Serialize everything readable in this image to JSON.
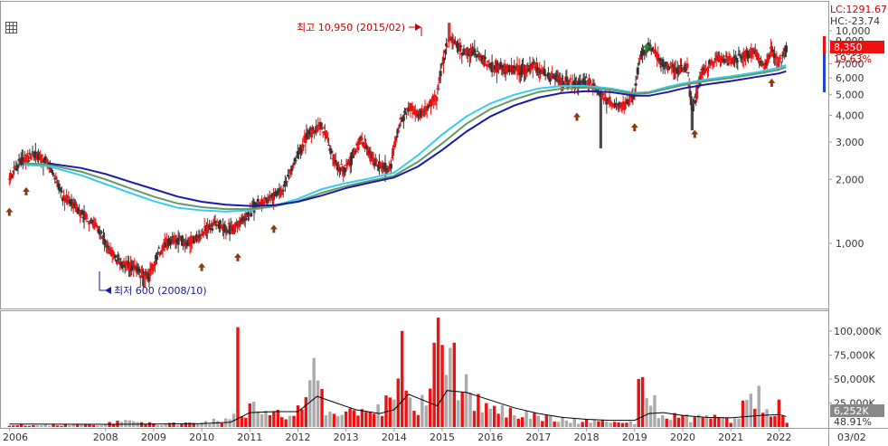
{
  "header": {
    "lc_label": "LC:1291.67",
    "hc_label": "HC:-23.74",
    "price_badge": "8,350",
    "change_label": "19.63%"
  },
  "volume_header": {
    "volume_badge": "6,252K",
    "volume_pct": "48.91%"
  },
  "annotations": {
    "high_label": "최고 10,950 (2015/02)",
    "low_label": "최저 600 (2008/10)"
  },
  "colors": {
    "up": "#ee1111",
    "down": "#333333",
    "ma_short": "#33ccee",
    "ma_mid": "#669966",
    "ma_long": "#1a1aaa",
    "vol_up": "#ee1111",
    "vol_down": "#aaaaaa",
    "vol_ma": "#000000",
    "arrow_brown": "#8b3a10",
    "arrow_green": "#2a8a2a",
    "badge_red": "#ee1111",
    "badge_gray": "#888888",
    "grid": "#dddddd"
  },
  "icons": {
    "chart_menu": "grid-menu-icon"
  },
  "chart_data": [
    {
      "type": "candlestick",
      "scale": "log",
      "ylim": [
        600,
        10950
      ],
      "y_ticks": [
        1000,
        2000,
        3000,
        4000,
        5000,
        6000,
        7000,
        8000,
        9000,
        10000
      ],
      "y_tick_labels": [
        "1,000",
        "2,000",
        "3,000",
        "4,000",
        "5,000",
        "6,000",
        "7,000",
        "8,000",
        "9,000",
        "10,000"
      ],
      "x_tick_labels": [
        "2006",
        "2008",
        "2009",
        "2010",
        "2011",
        "2012",
        "2013",
        "2014",
        "2015",
        "2016",
        "2017",
        "2018",
        "2019",
        "2020",
        "2021",
        "2022",
        "03/02"
      ],
      "x_tick_years": [
        2006,
        2008,
        2009,
        2010,
        2011,
        2012,
        2013,
        2014,
        2015,
        2016,
        2017,
        2018,
        2019,
        2020,
        2021,
        2022
      ],
      "x_range": [
        2005.9,
        2022.2
      ],
      "grid": false,
      "price_path": [
        [
          2006.0,
          2000
        ],
        [
          2006.2,
          2400
        ],
        [
          2006.5,
          2600
        ],
        [
          2006.8,
          2400
        ],
        [
          2007.1,
          1700
        ],
        [
          2007.5,
          1400
        ],
        [
          2007.8,
          1200
        ],
        [
          2008.0,
          1000
        ],
        [
          2008.3,
          800
        ],
        [
          2008.6,
          760
        ],
        [
          2008.9,
          700
        ],
        [
          2009.1,
          900
        ],
        [
          2009.4,
          1050
        ],
        [
          2009.7,
          1000
        ],
        [
          2010.0,
          1100
        ],
        [
          2010.3,
          1250
        ],
        [
          2010.6,
          1150
        ],
        [
          2010.9,
          1300
        ],
        [
          2011.1,
          1500
        ],
        [
          2011.4,
          1600
        ],
        [
          2011.7,
          1800
        ],
        [
          2012.0,
          2600
        ],
        [
          2012.2,
          3300
        ],
        [
          2012.5,
          3600
        ],
        [
          2012.8,
          2300
        ],
        [
          2013.0,
          2200
        ],
        [
          2013.3,
          3100
        ],
        [
          2013.6,
          2400
        ],
        [
          2013.9,
          2200
        ],
        [
          2014.1,
          3600
        ],
        [
          2014.3,
          4400
        ],
        [
          2014.5,
          4000
        ],
        [
          2014.7,
          4500
        ],
        [
          2014.9,
          5000
        ],
        [
          2015.0,
          7000
        ],
        [
          2015.15,
          9300
        ],
        [
          2015.4,
          8000
        ],
        [
          2015.7,
          7900
        ],
        [
          2016.0,
          6800
        ],
        [
          2016.3,
          6700
        ],
        [
          2016.6,
          6500
        ],
        [
          2016.9,
          6800
        ],
        [
          2017.2,
          6200
        ],
        [
          2017.5,
          5800
        ],
        [
          2017.8,
          5600
        ],
        [
          2018.0,
          5800
        ],
        [
          2018.2,
          5300
        ],
        [
          2018.4,
          4800
        ],
        [
          2018.6,
          4400
        ],
        [
          2018.8,
          4500
        ],
        [
          2019.0,
          5000
        ],
        [
          2019.1,
          7500
        ],
        [
          2019.3,
          8500
        ],
        [
          2019.6,
          7000
        ],
        [
          2019.9,
          6500
        ],
        [
          2020.1,
          6800
        ],
        [
          2020.2,
          4200
        ],
        [
          2020.4,
          6300
        ],
        [
          2020.7,
          7500
        ],
        [
          2021.0,
          7200
        ],
        [
          2021.3,
          7700
        ],
        [
          2021.5,
          7900
        ],
        [
          2021.7,
          6700
        ],
        [
          2021.85,
          8100
        ],
        [
          2022.0,
          7000
        ],
        [
          2022.15,
          8350
        ]
      ],
      "moving_averages": [
        {
          "points": [
            [
              2006.3,
              2340
            ],
            [
              2006.8,
              2310
            ],
            [
              2007.5,
              2090
            ],
            [
              2008.0,
              1900
            ],
            [
              2008.5,
              1730
            ],
            [
              2009.0,
              1580
            ],
            [
              2009.5,
              1470
            ],
            [
              2010.0,
              1430
            ],
            [
              2010.5,
              1410
            ],
            [
              2011.0,
              1430
            ],
            [
              2011.5,
              1500
            ],
            [
              2012.0,
              1620
            ],
            [
              2012.5,
              1800
            ],
            [
              2013.0,
              1920
            ],
            [
              2013.5,
              2020
            ],
            [
              2014.0,
              2150
            ],
            [
              2014.5,
              2600
            ],
            [
              2015.0,
              3250
            ],
            [
              2015.5,
              3950
            ],
            [
              2016.0,
              4550
            ],
            [
              2016.5,
              5000
            ],
            [
              2017.0,
              5350
            ],
            [
              2017.5,
              5500
            ],
            [
              2018.0,
              5500
            ],
            [
              2018.5,
              5350
            ],
            [
              2019.0,
              5100
            ],
            [
              2019.3,
              5150
            ],
            [
              2019.7,
              5450
            ],
            [
              2020.0,
              5650
            ],
            [
              2020.5,
              5900
            ],
            [
              2021.0,
              6100
            ],
            [
              2021.5,
              6350
            ],
            [
              2022.0,
              6700
            ],
            [
              2022.15,
              6900
            ]
          ]
        },
        {
          "points": [
            [
              2006.3,
              2380
            ],
            [
              2006.8,
              2350
            ],
            [
              2007.5,
              2170
            ],
            [
              2008.0,
              2000
            ],
            [
              2008.5,
              1820
            ],
            [
              2009.0,
              1660
            ],
            [
              2009.5,
              1540
            ],
            [
              2010.0,
              1480
            ],
            [
              2010.5,
              1450
            ],
            [
              2011.0,
              1450
            ],
            [
              2011.5,
              1490
            ],
            [
              2012.0,
              1580
            ],
            [
              2012.5,
              1730
            ],
            [
              2013.0,
              1860
            ],
            [
              2013.5,
              1970
            ],
            [
              2014.0,
              2080
            ],
            [
              2014.5,
              2420
            ],
            [
              2015.0,
              2950
            ],
            [
              2015.5,
              3650
            ],
            [
              2016.0,
              4280
            ],
            [
              2016.5,
              4750
            ],
            [
              2017.0,
              5150
            ],
            [
              2017.5,
              5350
            ],
            [
              2018.0,
              5400
            ],
            [
              2018.5,
              5280
            ],
            [
              2019.0,
              5050
            ],
            [
              2019.3,
              5100
            ],
            [
              2019.7,
              5350
            ],
            [
              2020.0,
              5550
            ],
            [
              2020.5,
              5800
            ],
            [
              2021.0,
              6000
            ],
            [
              2021.5,
              6250
            ],
            [
              2022.0,
              6550
            ],
            [
              2022.15,
              6750
            ]
          ]
        },
        {
          "points": [
            [
              2006.8,
              2380
            ],
            [
              2007.5,
              2260
            ],
            [
              2008.0,
              2120
            ],
            [
              2008.5,
              1950
            ],
            [
              2009.0,
              1800
            ],
            [
              2009.5,
              1660
            ],
            [
              2010.0,
              1570
            ],
            [
              2010.5,
              1520
            ],
            [
              2011.0,
              1500
            ],
            [
              2011.5,
              1510
            ],
            [
              2012.0,
              1570
            ],
            [
              2012.5,
              1680
            ],
            [
              2013.0,
              1820
            ],
            [
              2013.5,
              1930
            ],
            [
              2014.0,
              2040
            ],
            [
              2014.5,
              2300
            ],
            [
              2015.0,
              2750
            ],
            [
              2015.5,
              3350
            ],
            [
              2016.0,
              3950
            ],
            [
              2016.5,
              4450
            ],
            [
              2017.0,
              4850
            ],
            [
              2017.5,
              5100
            ],
            [
              2018.0,
              5200
            ],
            [
              2018.5,
              5150
            ],
            [
              2019.0,
              4950
            ],
            [
              2019.3,
              4950
            ],
            [
              2019.7,
              5150
            ],
            [
              2020.0,
              5350
            ],
            [
              2020.5,
              5600
            ],
            [
              2021.0,
              5800
            ],
            [
              2021.5,
              6050
            ],
            [
              2022.0,
              6300
            ],
            [
              2022.15,
              6450
            ]
          ]
        }
      ],
      "signal_arrows": [
        {
          "x": 2006.0,
          "dir": "up",
          "color": "brown"
        },
        {
          "x": 2006.35,
          "dir": "up",
          "color": "brown"
        },
        {
          "x": 2010.0,
          "dir": "up",
          "color": "brown"
        },
        {
          "x": 2010.75,
          "dir": "up",
          "color": "brown"
        },
        {
          "x": 2011.5,
          "dir": "up",
          "color": "brown"
        },
        {
          "x": 2017.8,
          "dir": "up",
          "color": "brown"
        },
        {
          "x": 2019.0,
          "dir": "up",
          "color": "brown"
        },
        {
          "x": 2019.25,
          "dir": "up",
          "color": "green"
        },
        {
          "x": 2020.25,
          "dir": "up",
          "color": "brown"
        },
        {
          "x": 2021.85,
          "dir": "up",
          "color": "brown"
        }
      ]
    },
    {
      "type": "bar",
      "series_kind": "volume",
      "ylim": [
        0,
        115000
      ],
      "y_ticks": [
        25000,
        50000,
        75000,
        100000
      ],
      "y_tick_labels": [
        "25,000K",
        "50,000K",
        "75,000K",
        "100,000K"
      ],
      "baseline": [
        [
          2006.0,
          2000
        ],
        [
          2008.0,
          2500
        ],
        [
          2008.3,
          6000
        ],
        [
          2009.0,
          3000
        ],
        [
          2010.0,
          4000
        ],
        [
          2010.6,
          9000
        ],
        [
          2011.0,
          20000
        ],
        [
          2011.5,
          12000
        ],
        [
          2012.0,
          18000
        ],
        [
          2012.3,
          40000
        ],
        [
          2012.6,
          22000
        ],
        [
          2013.0,
          15000
        ],
        [
          2013.5,
          12000
        ],
        [
          2014.0,
          30000
        ],
        [
          2014.2,
          55000
        ],
        [
          2014.5,
          20000
        ],
        [
          2014.9,
          75000
        ],
        [
          2015.15,
          85000
        ],
        [
          2015.3,
          50000
        ],
        [
          2015.6,
          30000
        ],
        [
          2016.0,
          20000
        ],
        [
          2016.5,
          14000
        ],
        [
          2017.0,
          10000
        ],
        [
          2017.5,
          7000
        ],
        [
          2018.0,
          6000
        ],
        [
          2018.5,
          5500
        ],
        [
          2019.0,
          5000
        ],
        [
          2019.1,
          45000
        ],
        [
          2019.3,
          30000
        ],
        [
          2019.6,
          12000
        ],
        [
          2020.0,
          10000
        ],
        [
          2020.5,
          9000
        ],
        [
          2021.0,
          8000
        ],
        [
          2021.6,
          40000
        ],
        [
          2021.8,
          9000
        ],
        [
          2022.0,
          20000
        ],
        [
          2022.15,
          6252
        ]
      ],
      "spikes": [
        [
          2010.75,
          104000
        ],
        [
          2014.2,
          100000
        ],
        [
          2014.9,
          114000
        ],
        [
          2012.3,
          72000
        ],
        [
          2019.2,
          52000
        ],
        [
          2021.6,
          43000
        ],
        [
          2015.5,
          55000
        ]
      ],
      "volume_ma": [
        [
          2006.0,
          3000
        ],
        [
          2008.0,
          2800
        ],
        [
          2009.0,
          3000
        ],
        [
          2010.0,
          3500
        ],
        [
          2010.6,
          5000
        ],
        [
          2011.0,
          15000
        ],
        [
          2011.5,
          16000
        ],
        [
          2012.0,
          16000
        ],
        [
          2012.4,
          32000
        ],
        [
          2012.8,
          25000
        ],
        [
          2013.2,
          18000
        ],
        [
          2013.7,
          14000
        ],
        [
          2014.0,
          18000
        ],
        [
          2014.3,
          34000
        ],
        [
          2014.6,
          28000
        ],
        [
          2014.9,
          22000
        ],
        [
          2015.1,
          38000
        ],
        [
          2015.5,
          36000
        ],
        [
          2016.0,
          28000
        ],
        [
          2016.5,
          20000
        ],
        [
          2017.0,
          14000
        ],
        [
          2017.5,
          10000
        ],
        [
          2018.0,
          8000
        ],
        [
          2018.5,
          7000
        ],
        [
          2019.0,
          7000
        ],
        [
          2019.3,
          14000
        ],
        [
          2019.6,
          15000
        ],
        [
          2020.0,
          12000
        ],
        [
          2020.5,
          10000
        ],
        [
          2021.0,
          9500
        ],
        [
          2021.6,
          12000
        ],
        [
          2022.0,
          13000
        ],
        [
          2022.15,
          11000
        ]
      ]
    }
  ]
}
